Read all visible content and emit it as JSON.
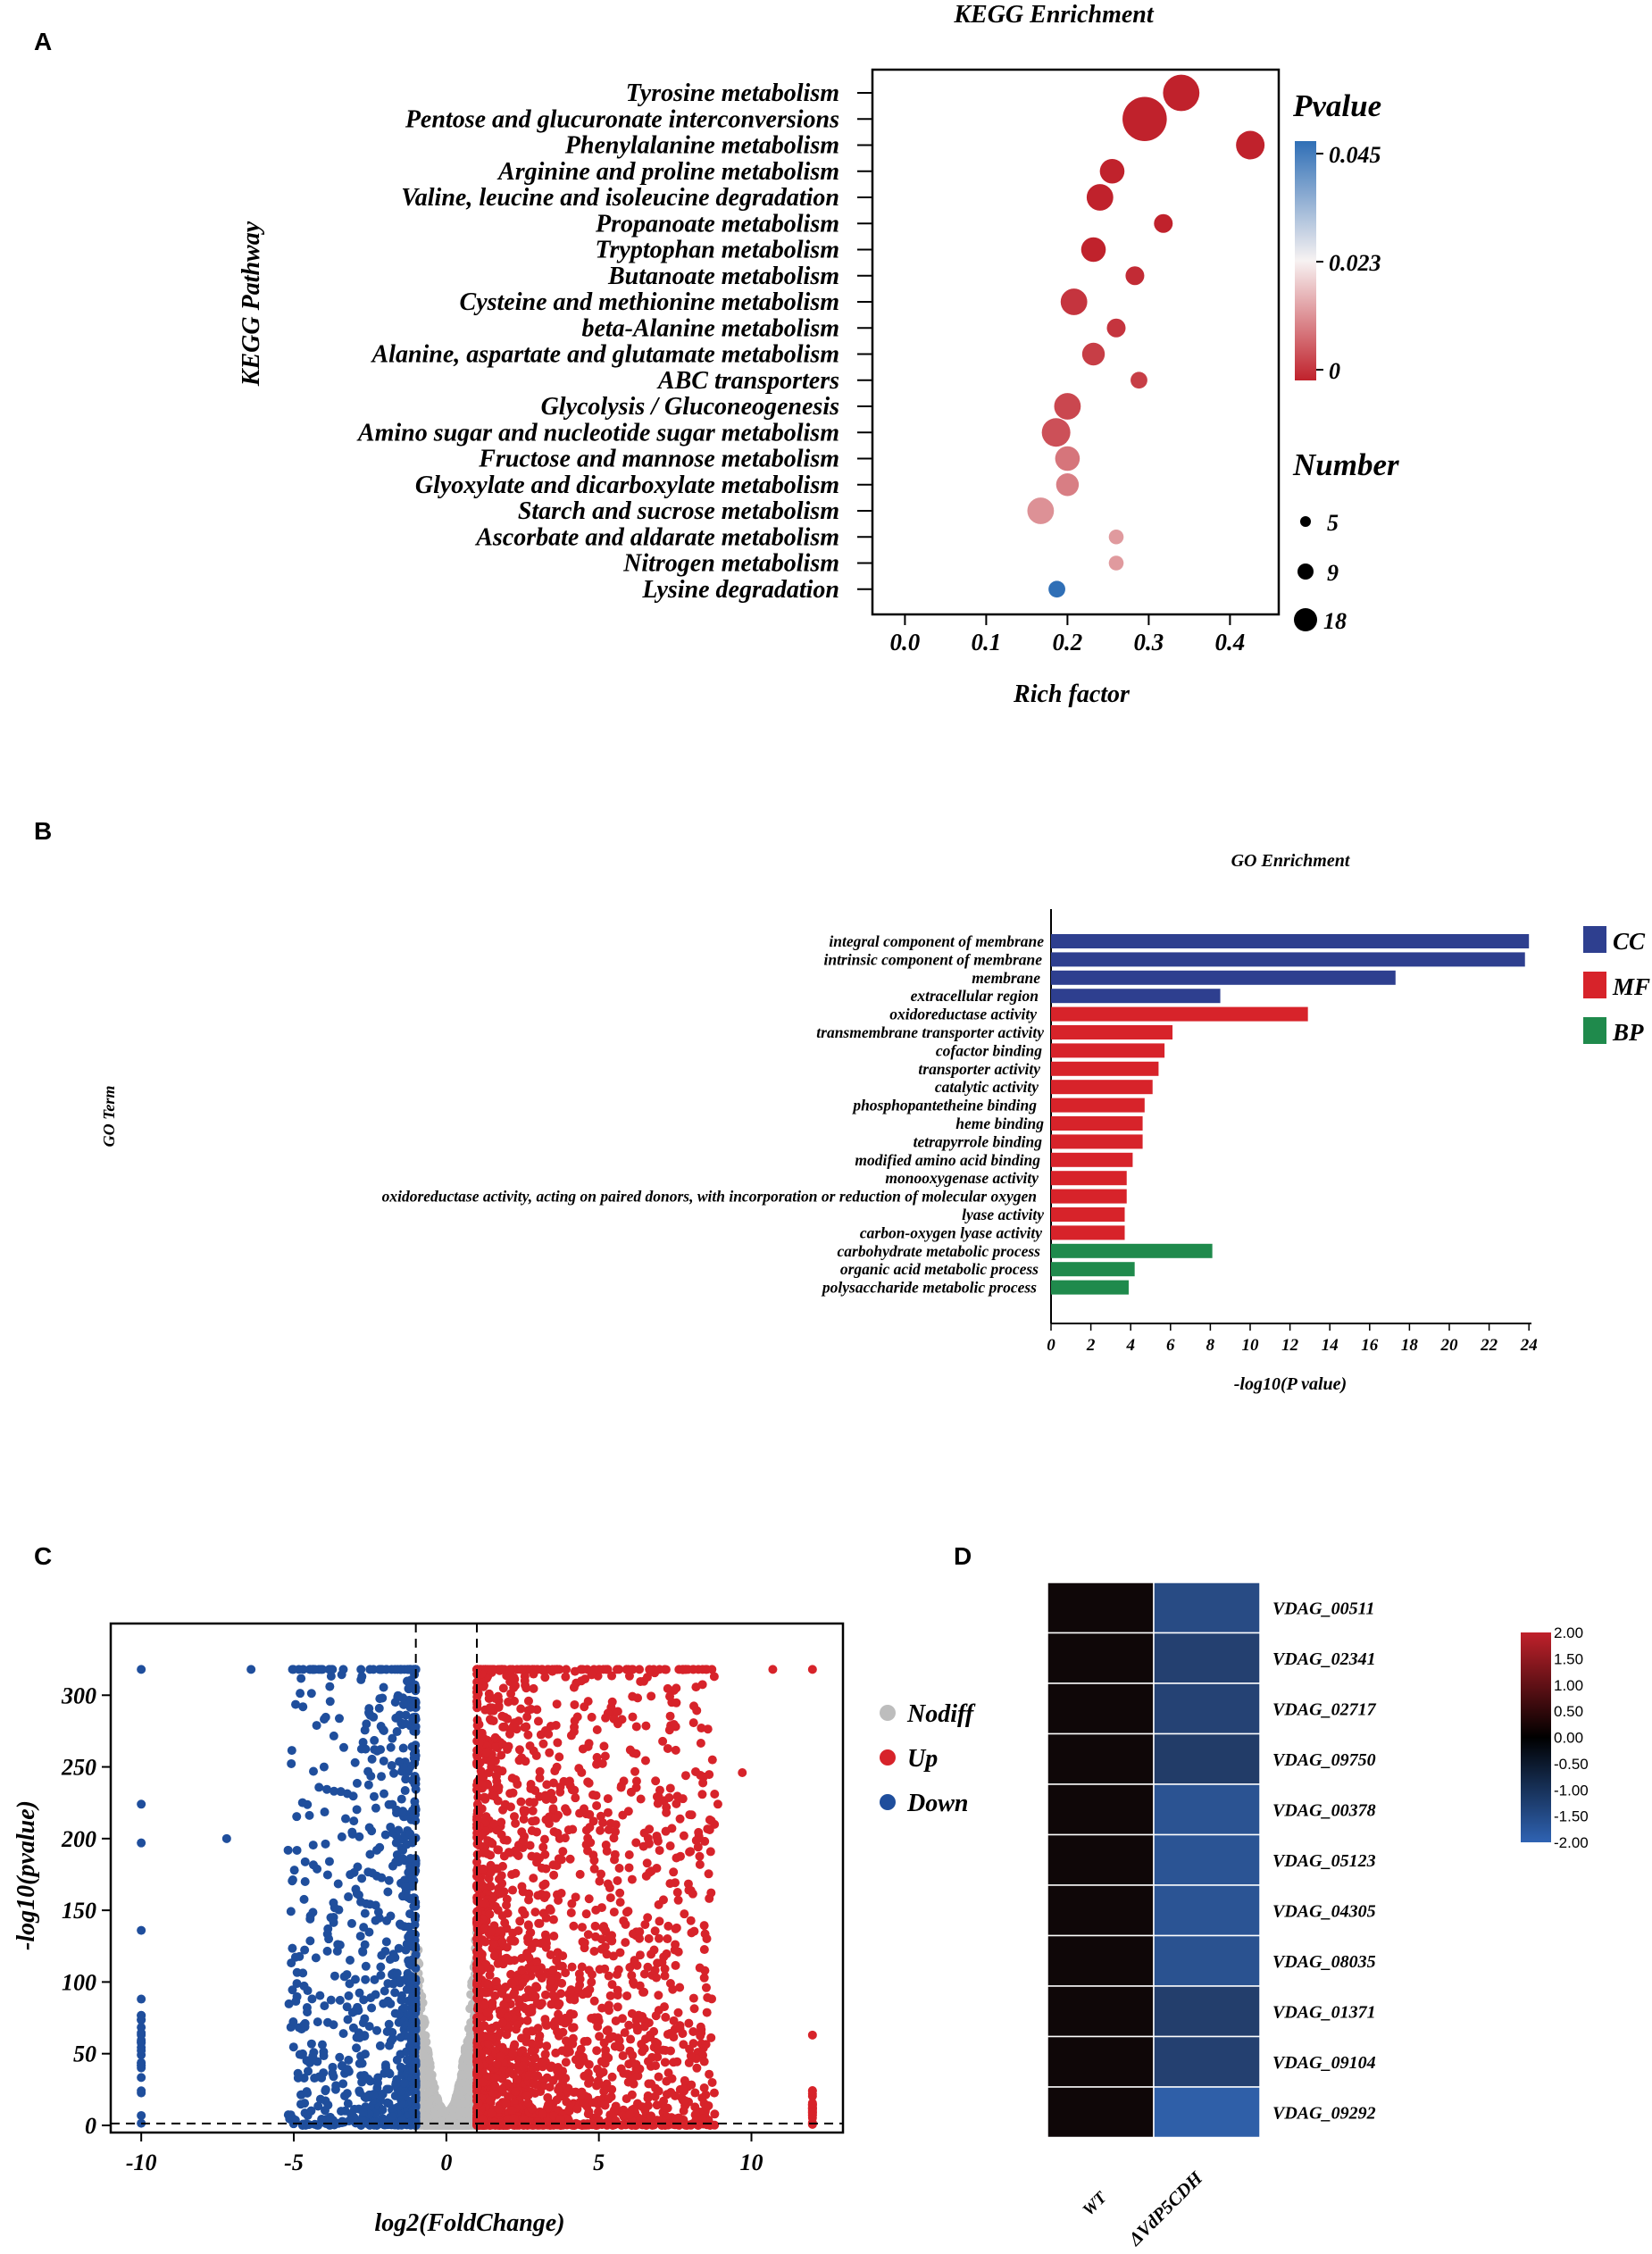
{
  "panels": {
    "a": "A",
    "b": "B",
    "c": "C",
    "d": "D"
  },
  "colors": {
    "navy": "#2e3f8f",
    "red": "#d7232a",
    "green": "#1f8a4c",
    "grey": "#bdbdbd",
    "blue_dot": "#1f4e9c",
    "heat_black": "#0f0708",
    "heat_low": "#2f5fa8"
  },
  "chart_data": [
    {
      "id": "kegg",
      "type": "scatter",
      "title": "KEGG Enrichment",
      "xlabel": "Rich factor",
      "ylabel": "KEGG Pathway",
      "xlim": [
        -0.04,
        0.46
      ],
      "xticks": [
        0.0,
        0.1,
        0.2,
        0.3,
        0.4
      ],
      "xtick_labels": [
        "0.0",
        "0.1",
        "0.2",
        "0.3",
        "0.4"
      ],
      "pathways": [
        "Tyrosine metabolism",
        "Pentose and glucuronate interconversions",
        "Phenylalanine metabolism",
        "Arginine and proline metabolism",
        "Valine, leucine and isoleucine degradation",
        "Propanoate metabolism",
        "Tryptophan metabolism",
        "Butanoate metabolism",
        "Cysteine and methionine metabolism",
        "beta-Alanine metabolism",
        "Alanine, aspartate and glutamate metabolism",
        "ABC transporters",
        "Glycolysis / Gluconeogenesis",
        "Amino sugar and nucleotide sugar metabolism",
        "Fructose and mannose metabolism",
        "Glyoxylate and dicarboxylate metabolism",
        "Starch and sucrose metabolism",
        "Ascorbate and aldarate metabolism",
        "Nitrogen metabolism",
        "Lysine degradation"
      ],
      "rich_factor": [
        0.34,
        0.295,
        0.425,
        0.255,
        0.24,
        0.318,
        0.232,
        0.283,
        0.208,
        0.26,
        0.232,
        0.288,
        0.2,
        0.186,
        0.2,
        0.2,
        0.167,
        0.26,
        0.26,
        0.187
      ],
      "number": [
        14,
        18,
        10,
        8,
        9,
        5,
        8,
        5,
        9,
        5,
        7,
        4,
        9,
        10,
        8,
        7,
        9,
        3,
        3,
        4
      ],
      "pvalue": [
        0.0,
        0.0,
        0.0,
        0.0,
        0.0,
        0.0,
        0.0,
        0.001,
        0.002,
        0.002,
        0.003,
        0.003,
        0.004,
        0.005,
        0.009,
        0.01,
        0.012,
        0.013,
        0.013,
        0.045
      ],
      "color_legend": {
        "title": "Pvalue",
        "ticks": [
          "0.045",
          "0.023",
          "0"
        ]
      },
      "size_legend": {
        "title": "Number",
        "values": [
          5,
          9,
          18
        ],
        "labels": [
          "5",
          "9",
          "18"
        ]
      }
    },
    {
      "id": "go",
      "type": "bar",
      "orientation": "horizontal",
      "title": "GO Enrichment",
      "xlabel": "-log10(P value)",
      "ylabel": "GO Term",
      "xlim": [
        0,
        24
      ],
      "xticks": [
        "0",
        "2",
        "4",
        "6",
        "8",
        "10",
        "12",
        "14",
        "16",
        "18",
        "20",
        "22",
        "24"
      ],
      "categories": [
        "integral component of membrane",
        "intrinsic component of membrane",
        "membrane",
        "extracellular region",
        "oxidoreductase activity",
        "transmembrane transporter activity",
        "cofactor binding",
        "transporter activity",
        "catalytic activity",
        "phosphopantetheine binding",
        "heme binding",
        "tetrapyrrole binding",
        "modified amino acid binding",
        "monooxygenase activity",
        "oxidoreductase activity, acting on paired donors, with incorporation or reduction of molecular oxygen",
        "lyase activity",
        "carbon-oxygen lyase activity",
        "carbohydrate metabolic process",
        "organic acid metabolic process",
        "polysaccharide metabolic process"
      ],
      "values": [
        24.0,
        23.8,
        17.3,
        8.5,
        12.9,
        6.1,
        5.7,
        5.4,
        5.1,
        4.7,
        4.6,
        4.6,
        4.1,
        3.8,
        3.8,
        3.7,
        3.7,
        8.1,
        4.2,
        3.9
      ],
      "group": [
        "CC",
        "CC",
        "CC",
        "CC",
        "MF",
        "MF",
        "MF",
        "MF",
        "MF",
        "MF",
        "MF",
        "MF",
        "MF",
        "MF",
        "MF",
        "MF",
        "MF",
        "BP",
        "BP",
        "BP"
      ],
      "legend": [
        "CC",
        "MF",
        "BP"
      ]
    },
    {
      "id": "volcano",
      "type": "scatter",
      "xlabel": "log2(FoldChange)",
      "ylabel": "-log10(pvalue)",
      "xlim": [
        -11,
        13
      ],
      "ylim": [
        -5,
        350
      ],
      "xticks": [
        "-10",
        "-5",
        "0",
        "5",
        "10"
      ],
      "yticks": [
        "0",
        "50",
        "100",
        "150",
        "200",
        "250",
        "300"
      ],
      "thresholds": {
        "log2fc": [
          -1,
          1
        ],
        "neglog10p": 1.3
      },
      "legend": [
        "Nodiff",
        "Up",
        "Down"
      ],
      "point_counts": {
        "nodiff": 1400,
        "up": 2100,
        "down": 900
      },
      "notable_points": [
        {
          "group": "Down",
          "x": -10,
          "y": 318
        },
        {
          "group": "Down",
          "x": -10,
          "y": 224
        },
        {
          "group": "Down",
          "x": -10,
          "y": 197
        },
        {
          "group": "Down",
          "x": -10,
          "y": 136
        },
        {
          "group": "Down",
          "x": -7.2,
          "y": 200
        },
        {
          "group": "Down",
          "x": -6.4,
          "y": 318
        },
        {
          "group": "Up",
          "x": 12,
          "y": 318
        },
        {
          "group": "Up",
          "x": 10.7,
          "y": 318
        },
        {
          "group": "Up",
          "x": 9.7,
          "y": 246
        },
        {
          "group": "Up",
          "x": 8.9,
          "y": 224
        },
        {
          "group": "Up",
          "x": 12,
          "y": 63
        }
      ]
    },
    {
      "id": "heatmap",
      "type": "heatmap",
      "columns": [
        "WT",
        "ΔVdP5CDH"
      ],
      "rows": [
        "VDAG_00511",
        "VDAG_02341",
        "VDAG_02717",
        "VDAG_09750",
        "VDAG_00378",
        "VDAG_05123",
        "VDAG_04305",
        "VDAG_08035",
        "VDAG_01371",
        "VDAG_09104",
        "VDAG_09292"
      ],
      "values": [
        [
          0.0,
          -1.55
        ],
        [
          0.0,
          -1.3
        ],
        [
          0.0,
          -1.35
        ],
        [
          0.0,
          -1.2
        ],
        [
          0.0,
          -1.72
        ],
        [
          0.0,
          -1.75
        ],
        [
          0.0,
          -1.75
        ],
        [
          0.0,
          -1.7
        ],
        [
          0.0,
          -1.25
        ],
        [
          0.0,
          -1.3
        ],
        [
          0.0,
          -2.0
        ]
      ],
      "colorbar": {
        "min": -2.0,
        "max": 2.0,
        "ticks": [
          "2.00",
          "1.50",
          "1.00",
          "0.50",
          "0.00",
          "-0.50",
          "-1.00",
          "-1.50",
          "-2.00"
        ]
      }
    }
  ]
}
